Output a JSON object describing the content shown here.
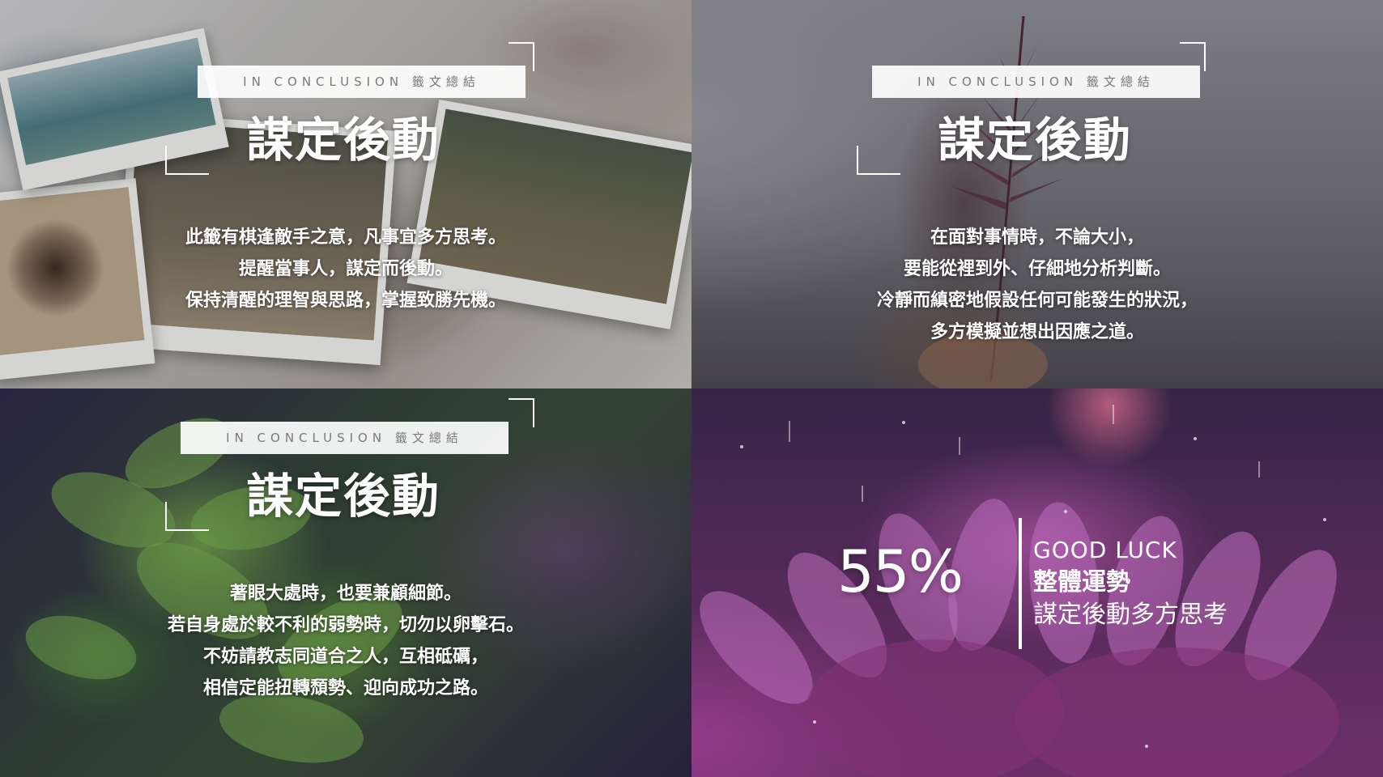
{
  "panels": [
    {
      "tag": "IN CONCLUSION  籤文總結",
      "title": "謀定後動",
      "lines": [
        "此籤有棋逢敵手之意，凡事宜多方思考。",
        "提醒當事人，謀定而後動。",
        "保持清醒的理智與思路，掌握致勝先機。"
      ]
    },
    {
      "tag": "IN CONCLUSION  籤文總結",
      "title": "謀定後動",
      "lines": [
        "在面對事情時，不論大小，",
        "要能從裡到外、仔細地分析判斷。",
        "冷靜而縝密地假設任何可能發生的狀況，",
        "多方模擬並想出因應之道。"
      ]
    },
    {
      "tag": "IN CONCLUSION  籤文總結",
      "title": "謀定後動",
      "lines": [
        "著眼大處時，也要兼顧細節。",
        "若自身處於較不利的弱勢時，切勿以卵擊石。",
        "不妨請教志同道合之人，互相砥礪，",
        "相信定能扭轉頹勢、迎向成功之路。"
      ]
    }
  ],
  "luck": {
    "percent": "55%",
    "heading": "GOOD LUCK",
    "subtitle": "整體運勢",
    "note": "謀定後動多方思考"
  }
}
